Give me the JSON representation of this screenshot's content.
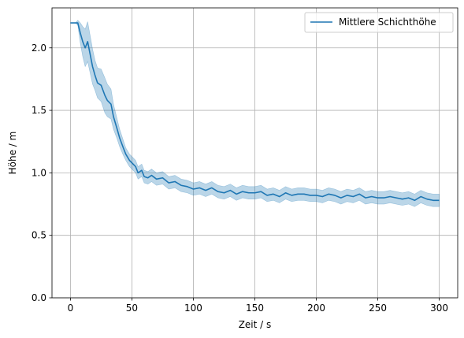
{
  "chart_data": {
    "type": "line",
    "xlabel": "Zeit / s",
    "ylabel": "Höhe / m",
    "xlim": [
      -15,
      315
    ],
    "ylim": [
      0.0,
      2.32
    ],
    "xticks": [
      0,
      50,
      100,
      150,
      200,
      250,
      300
    ],
    "yticks": [
      0.0,
      0.5,
      1.0,
      1.5,
      2.0
    ],
    "ytick_labels": [
      "0.0",
      "0.5",
      "1.0",
      "1.5",
      "2.0"
    ],
    "xtick_labels": [
      "0",
      "50",
      "100",
      "150",
      "200",
      "250",
      "300"
    ],
    "grid": true,
    "legend_position": "top-right",
    "series": [
      {
        "name": "Mittlere Schichthöhe",
        "color": "#1f77b4",
        "band_color": "#1f77b4",
        "band_alpha": 0.3,
        "x": [
          0,
          4,
          6,
          8,
          10,
          12,
          14,
          16,
          18,
          20,
          22,
          25,
          28,
          30,
          33,
          35,
          38,
          40,
          43,
          45,
          48,
          50,
          53,
          55,
          58,
          60,
          63,
          66,
          70,
          75,
          80,
          85,
          90,
          95,
          100,
          105,
          110,
          115,
          120,
          125,
          130,
          135,
          140,
          145,
          150,
          155,
          160,
          165,
          170,
          175,
          180,
          185,
          190,
          195,
          200,
          205,
          210,
          215,
          220,
          225,
          230,
          235,
          240,
          245,
          250,
          255,
          260,
          265,
          270,
          275,
          280,
          285,
          290,
          295,
          300
        ],
        "y": [
          2.2,
          2.2,
          2.2,
          2.12,
          2.05,
          2.0,
          2.05,
          1.95,
          1.85,
          1.78,
          1.72,
          1.7,
          1.62,
          1.58,
          1.55,
          1.45,
          1.35,
          1.28,
          1.2,
          1.15,
          1.1,
          1.08,
          1.05,
          1.0,
          1.02,
          0.97,
          0.96,
          0.98,
          0.95,
          0.96,
          0.92,
          0.93,
          0.9,
          0.89,
          0.87,
          0.88,
          0.86,
          0.88,
          0.85,
          0.84,
          0.86,
          0.83,
          0.85,
          0.84,
          0.84,
          0.85,
          0.82,
          0.83,
          0.81,
          0.84,
          0.82,
          0.83,
          0.83,
          0.82,
          0.82,
          0.81,
          0.83,
          0.82,
          0.8,
          0.82,
          0.81,
          0.83,
          0.8,
          0.81,
          0.8,
          0.8,
          0.81,
          0.8,
          0.79,
          0.8,
          0.78,
          0.81,
          0.79,
          0.78,
          0.78
        ],
        "band_halfwidth": [
          0.0,
          0.0,
          0.02,
          0.08,
          0.12,
          0.15,
          0.16,
          0.15,
          0.14,
          0.12,
          0.12,
          0.13,
          0.14,
          0.13,
          0.12,
          0.1,
          0.08,
          0.07,
          0.06,
          0.05,
          0.05,
          0.05,
          0.05,
          0.05,
          0.05,
          0.05,
          0.05,
          0.05,
          0.05,
          0.05,
          0.05,
          0.05,
          0.05,
          0.05,
          0.05,
          0.05,
          0.05,
          0.05,
          0.05,
          0.05,
          0.05,
          0.05,
          0.05,
          0.05,
          0.05,
          0.05,
          0.05,
          0.05,
          0.05,
          0.05,
          0.05,
          0.05,
          0.05,
          0.05,
          0.05,
          0.05,
          0.05,
          0.05,
          0.05,
          0.05,
          0.05,
          0.05,
          0.05,
          0.05,
          0.05,
          0.05,
          0.05,
          0.05,
          0.05,
          0.05,
          0.05,
          0.05,
          0.05,
          0.05,
          0.05
        ]
      }
    ]
  }
}
